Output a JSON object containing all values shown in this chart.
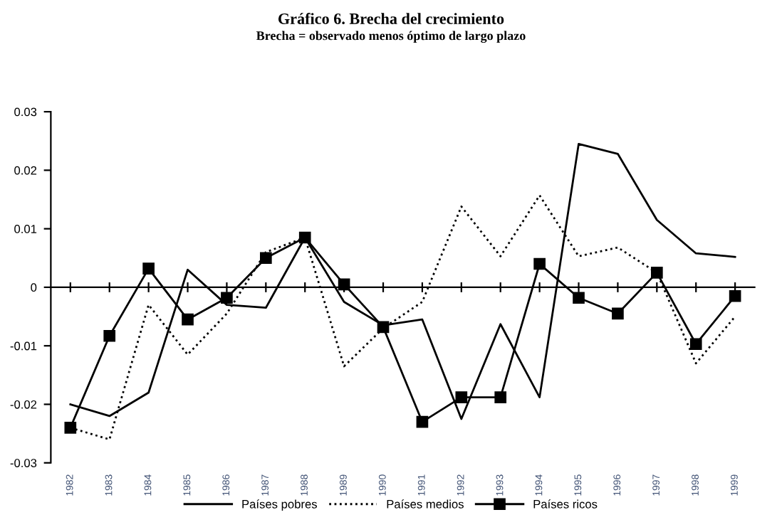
{
  "chart_data": {
    "type": "line",
    "title": "Gráfico 6. Brecha del crecimiento",
    "subtitle": "Brecha = observado menos óptimo de largo plazo",
    "categories": [
      "1982",
      "1983",
      "1984",
      "1985",
      "1986",
      "1987",
      "1988",
      "1989",
      "1990",
      "1991",
      "1992",
      "1993",
      "1994",
      "1995",
      "1996",
      "1997",
      "1998",
      "1999"
    ],
    "ylim": [
      -0.03,
      0.03
    ],
    "yticks": [
      {
        "value": -0.03,
        "label": "-0.03"
      },
      {
        "value": -0.02,
        "label": "-0.02"
      },
      {
        "value": -0.01,
        "label": "-0.01"
      },
      0,
      0.01,
      0.02,
      0.03
    ],
    "legend": "bottom",
    "series": [
      {
        "name": "Países pobres",
        "color": "#000000",
        "line_style": "solid",
        "marker": "none",
        "values": [
          -0.02,
          -0.022,
          -0.018,
          0.003,
          -0.003,
          -0.0035,
          0.0085,
          -0.0025,
          -0.0065,
          -0.0055,
          -0.0225,
          -0.0063,
          -0.0188,
          0.0245,
          0.0228,
          0.0115,
          0.0058,
          0.0052
        ]
      },
      {
        "name": "Países medios",
        "color": "#000000",
        "line_style": "dotted",
        "marker": "none",
        "values": [
          -0.024,
          -0.026,
          -0.003,
          -0.0115,
          -0.0045,
          0.006,
          0.0085,
          -0.0135,
          -0.007,
          -0.0025,
          0.0138,
          0.0053,
          0.0157,
          0.0053,
          0.0068,
          0.0025,
          -0.013,
          -0.005
        ]
      },
      {
        "name": "Países ricos",
        "color": "#000000",
        "line_style": "solid",
        "marker": "square",
        "values": [
          -0.024,
          -0.0083,
          0.0032,
          -0.0055,
          -0.0018,
          0.005,
          0.0085,
          0.0005,
          -0.0068,
          -0.023,
          -0.0188,
          -0.0188,
          0.004,
          -0.0018,
          -0.0045,
          0.0025,
          -0.0097,
          -0.0015
        ]
      }
    ]
  }
}
